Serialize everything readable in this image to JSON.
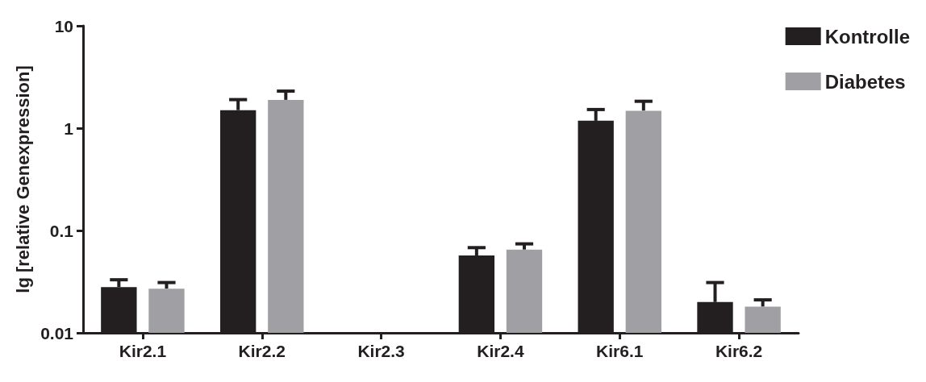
{
  "chart_data": {
    "type": "bar",
    "ylabel": "lg [relative Genexpression]",
    "categories": [
      "Kir2.1",
      "Kir2.2",
      "Kir2.3",
      "Kir2.4",
      "Kir6.1",
      "Kir6.2"
    ],
    "series": [
      {
        "name": "Kontrolle",
        "color": "#231f20",
        "values": [
          0.028,
          1.5,
          null,
          0.057,
          1.18,
          0.02
        ],
        "errors": [
          [
            0.028,
            0.033
          ],
          [
            1.5,
            1.9
          ],
          null,
          [
            0.057,
            0.068
          ],
          [
            1.18,
            1.52
          ],
          [
            0.02,
            0.031
          ]
        ]
      },
      {
        "name": "Diabetes",
        "color": "#a0a0a4",
        "values": [
          0.027,
          1.89,
          null,
          0.065,
          1.48,
          0.018
        ],
        "errors": [
          [
            0.027,
            0.031
          ],
          [
            1.89,
            2.3
          ],
          null,
          [
            0.065,
            0.074
          ],
          [
            1.48,
            1.83
          ],
          [
            0.018,
            0.021
          ]
        ]
      }
    ],
    "log": "y",
    "ylim": [
      0.01,
      10
    ],
    "yticks": [
      0.01,
      0.1,
      1,
      10
    ],
    "grid": false,
    "legend": "top right"
  }
}
